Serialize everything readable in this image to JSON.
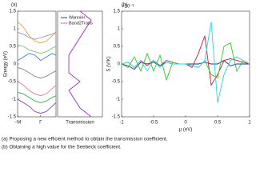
{
  "chart_data": [
    {
      "type": "line",
      "panel_label": "(a)",
      "ylabel": "Energy (eV)",
      "x": [
        0,
        0.15,
        0.3,
        0.45,
        0.6,
        0.75,
        0.9,
        1
      ],
      "xlim": [
        0,
        1
      ],
      "xticks": [
        {
          "value": 0,
          "label": "−M"
        },
        {
          "value": 0.6,
          "label": "Γ"
        }
      ],
      "ylim": [
        -1.5,
        1.5
      ],
      "yticks": [
        1.5,
        1,
        0.5,
        0,
        -0.5,
        -1,
        -1.5
      ],
      "series": [
        {
          "color": "#e8a33c",
          "values": [
            1.2,
            1.05,
            0.8,
            0.65,
            0.6,
            0.65,
            0.8,
            0.9
          ]
        },
        {
          "color": "#9a8fb8",
          "values": [
            0.9,
            0.85,
            0.75,
            0.7,
            0.75,
            0.8,
            0.85,
            0.9
          ]
        },
        {
          "color": "#7cc46a",
          "values": [
            0.55,
            0.5,
            0.4,
            0.35,
            0.3,
            0.35,
            0.45,
            0.5
          ]
        },
        {
          "color": "#3f7fd0",
          "values": [
            0.1,
            0.2,
            0.3,
            0.25,
            0.1,
            0.2,
            0.3,
            0.25
          ]
        },
        {
          "color": "#888888",
          "values": [
            -0.1,
            -0.15,
            -0.25,
            -0.35,
            -0.4,
            -0.35,
            -0.25,
            -0.2
          ]
        },
        {
          "color": "#e07aa8",
          "values": [
            -0.5,
            -0.6,
            -0.75,
            -0.85,
            -0.9,
            -0.85,
            -0.7,
            -0.6
          ]
        },
        {
          "color": "#3aa64a",
          "values": [
            -0.8,
            -0.85,
            -0.95,
            -1.05,
            -1.1,
            -1.05,
            -0.95,
            -0.9
          ]
        },
        {
          "color": "#8a3fb0",
          "values": [
            -1.0,
            -1.1,
            -1.2,
            -1.35,
            -1.4,
            -1.35,
            -1.2,
            -1.1
          ]
        }
      ]
    },
    {
      "type": "step",
      "xlabel": "Transmission",
      "y": [
        -1.5,
        -1.25,
        -1,
        -0.75,
        -0.5,
        -0.25,
        0,
        0.25,
        0.5,
        0.75,
        1,
        1.25,
        1.5
      ],
      "ylim": [
        -1.5,
        1.5
      ],
      "xlim": [
        0,
        8
      ],
      "series": [
        {
          "name": "Wannier",
          "color": "#1f3f8f",
          "values": [
            6,
            4,
            3,
            2,
            4,
            2,
            2,
            2,
            3,
            4,
            5,
            6,
            4
          ]
        },
        {
          "name": "Band2Trans",
          "color": "#d62fd6",
          "values": [
            6,
            4,
            3,
            2,
            4,
            2,
            2,
            2,
            3,
            4,
            5,
            6,
            4
          ]
        }
      ]
    },
    {
      "type": "line",
      "panel_label": "(b)",
      "ylabel": "S (V/K)",
      "y_scale_label": "×10⁻³",
      "xlabel": "μ (eV)",
      "x": [
        -1,
        -0.9,
        -0.8,
        -0.7,
        -0.6,
        -0.5,
        -0.4,
        -0.3,
        -0.2,
        -0.1,
        0,
        0.1,
        0.2,
        0.3,
        0.4,
        0.5,
        0.6,
        0.7,
        0.8,
        0.9,
        1
      ],
      "xlim": [
        -1,
        1
      ],
      "xticks": [
        -1,
        -0.5,
        0,
        0.5,
        1
      ],
      "ylim": [
        -1.5,
        1.5
      ],
      "yticks": [
        1.5,
        1,
        0.5,
        0,
        -0.5,
        -1,
        -1.5
      ],
      "series": [
        {
          "color": "#1f2f9f",
          "values": [
            0,
            -0.05,
            -0.15,
            0.05,
            0,
            0.05,
            -0.05,
            0.05,
            0,
            0,
            0,
            0,
            0,
            0.05,
            0,
            0,
            0.1,
            -0.05,
            0,
            0,
            0
          ]
        },
        {
          "color": "#d01c2c",
          "values": [
            0,
            0.05,
            -0.1,
            0.1,
            -0.05,
            0.1,
            -0.05,
            0.1,
            0.05,
            0,
            0,
            -0.1,
            0.3,
            0.8,
            -0.6,
            -0.3,
            0.1,
            0.15,
            0.1,
            0.05,
            0
          ]
        },
        {
          "color": "#2fc82f",
          "values": [
            0,
            -0.1,
            0.2,
            -0.2,
            0.3,
            -0.2,
            0.25,
            -0.45,
            0.05,
            0,
            0,
            -0.05,
            -0.1,
            0.1,
            -0.3,
            -0.4,
            0.5,
            0.6,
            -0.2,
            0.1,
            0
          ]
        },
        {
          "color": "#22d8e8",
          "values": [
            0,
            0.05,
            -0.1,
            0.1,
            -0.2,
            0.1,
            -0.1,
            0.05,
            0,
            0,
            0,
            -0.05,
            -0.1,
            0.1,
            1.2,
            -1.1,
            -0.3,
            0.1,
            0.2,
            0.1,
            0
          ]
        }
      ]
    }
  ],
  "captions": [
    "(a)  Proposing a new efficient method to obtain the transmission coefficient.",
    "(b)  Obtaining a high value for the Seebeck coefficient."
  ]
}
